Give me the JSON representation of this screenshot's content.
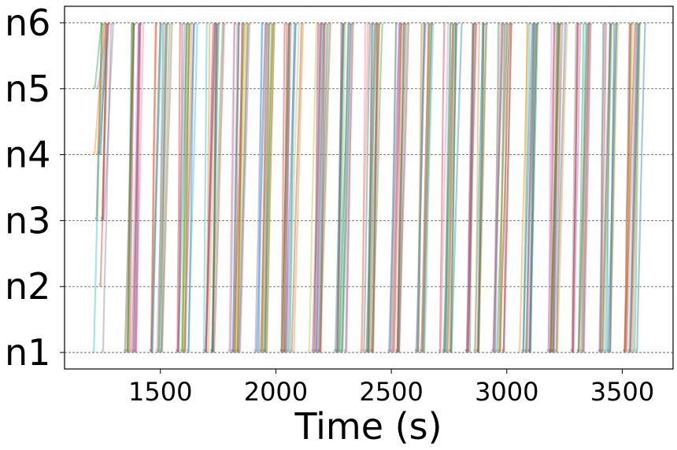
{
  "chart_data": {
    "type": "line",
    "title": "",
    "xlabel": "Time (s)",
    "ylabel": "",
    "xlim": [
      1085,
      3720
    ],
    "ylim": [
      -0.25,
      5.25
    ],
    "x_ticks": [
      1500,
      2000,
      2500,
      3000,
      3500
    ],
    "x_tick_labels": [
      "1500",
      "2000",
      "2500",
      "3000",
      "3500"
    ],
    "y_tick_labels": [
      "n1",
      "n2",
      "n3",
      "n4",
      "n5",
      "n6"
    ],
    "y_grid": true,
    "y_grid_style": "dashed",
    "x_grid": false,
    "series_note": "Many semi-transparent trajectories, each rising from n1 to n6 in about 15-40 s, repeating roughly every 115 s between t≈1200 s and t≈3600 s",
    "cycle_start_times": [
      1205,
      1340,
      1455,
      1570,
      1680,
      1795,
      1910,
      2025,
      2140,
      2255,
      2370,
      2485,
      2595,
      2710,
      2825,
      2940,
      3055,
      3170,
      3280,
      3395,
      3510
    ],
    "trip_duration_range": [
      12,
      45
    ],
    "colors": [
      "#1f77b4",
      "#ff7f0e",
      "#2ca02c",
      "#d62728",
      "#9467bd",
      "#8c564b",
      "#e377c2",
      "#7f7f7f",
      "#bcbd22",
      "#17becf"
    ],
    "line_alpha": 0.4
  }
}
